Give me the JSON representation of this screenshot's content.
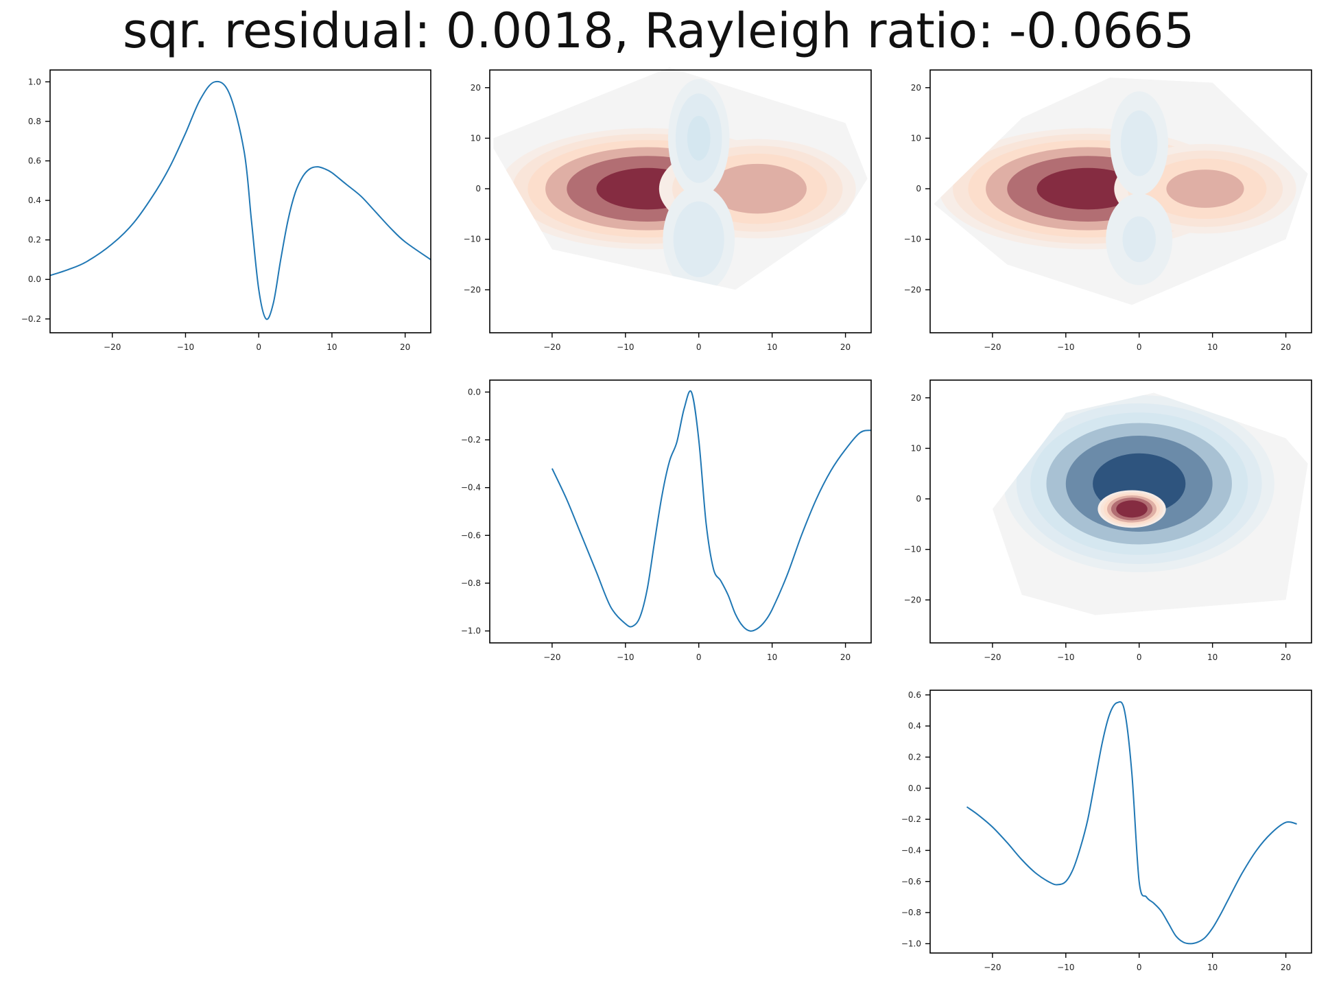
{
  "title": "sqr. residual: 0.0018, Rayleigh ratio: -0.0665",
  "colors": {
    "line": "#1f77b4",
    "colormap": "RdBu_r",
    "negative_strong": "#053061",
    "negative_light": "#d1e5f0",
    "neutral": "#f4f4f4",
    "positive_light": "#fddbc7",
    "positive_strong": "#67001f"
  },
  "chart_data": [
    {
      "id": "row1-col1",
      "type": "line",
      "xlim": [
        -28.5,
        23.5
      ],
      "ylim": [
        -0.27,
        1.06
      ],
      "xticks": [
        -20,
        -10,
        0,
        10,
        20
      ],
      "xtick_labels": [
        "−20",
        "−10",
        "0",
        "10",
        "20"
      ],
      "yticks": [
        -0.2,
        0.0,
        0.2,
        0.4,
        0.6,
        0.8,
        1.0
      ],
      "ytick_labels": [
        "−0.2",
        "0.0",
        "0.2",
        "0.4",
        "0.6",
        "0.8",
        "1.0"
      ],
      "series": [
        {
          "x": [
            -28.5,
            -26,
            -23.5,
            -20,
            -17,
            -14,
            -12,
            -10,
            -8,
            -6,
            -4,
            -2,
            -1,
            0,
            1,
            2,
            3,
            4,
            5,
            6,
            7,
            8,
            9,
            10,
            12,
            14,
            16,
            18,
            20,
            23.5
          ],
          "y": [
            0.02,
            0.05,
            0.09,
            0.18,
            0.29,
            0.45,
            0.58,
            0.74,
            0.91,
            1.0,
            0.94,
            0.65,
            0.3,
            -0.05,
            -0.2,
            -0.12,
            0.1,
            0.3,
            0.44,
            0.52,
            0.56,
            0.57,
            0.56,
            0.54,
            0.48,
            0.42,
            0.34,
            0.26,
            0.19,
            0.1
          ]
        }
      ]
    },
    {
      "id": "row1-col2",
      "type": "heatmap",
      "xlim": [
        -28.5,
        23.5
      ],
      "ylim": [
        -28.5,
        23.5
      ],
      "xticks": [
        -20,
        -10,
        0,
        10,
        20
      ],
      "xtick_labels": [
        "−20",
        "−10",
        "0",
        "10",
        "20"
      ],
      "yticks": [
        -20,
        -10,
        0,
        10,
        20
      ],
      "ytick_labels": [
        "−20",
        "−10",
        "0",
        "10",
        "20"
      ],
      "field": {
        "hull": [
          [
            -28,
            10
          ],
          [
            -4,
            24
          ],
          [
            20,
            13
          ],
          [
            23,
            2
          ],
          [
            20,
            -5
          ],
          [
            5,
            -20
          ],
          [
            -20,
            -12
          ],
          [
            -28,
            8
          ]
        ],
        "lobes": [
          {
            "center": [
              -7,
              0
            ],
            "radius": [
              22,
              13
            ],
            "peak": 1.0
          },
          {
            "center": [
              8,
              0
            ],
            "radius": [
              15,
              11
            ],
            "peak": 0.75
          },
          {
            "center": [
              0,
              10
            ],
            "radius": [
              5,
              14
            ],
            "peak": -0.5
          },
          {
            "center": [
              0,
              -10
            ],
            "radius": [
              6,
              13
            ],
            "peak": -0.45
          }
        ]
      }
    },
    {
      "id": "row1-col3",
      "type": "heatmap",
      "xlim": [
        -28.5,
        23.5
      ],
      "ylim": [
        -28.5,
        23.5
      ],
      "xticks": [
        -20,
        -10,
        0,
        10,
        20
      ],
      "xtick_labels": [
        "−20",
        "−10",
        "0",
        "10",
        "20"
      ],
      "yticks": [
        -20,
        -10,
        0,
        10,
        20
      ],
      "ytick_labels": [
        "−20",
        "−10",
        "0",
        "10",
        "20"
      ],
      "field": {
        "hull": [
          [
            -28,
            -3
          ],
          [
            -16,
            14
          ],
          [
            -4,
            22
          ],
          [
            10,
            21
          ],
          [
            23,
            3
          ],
          [
            20,
            -10
          ],
          [
            -1,
            -23
          ],
          [
            -18,
            -15
          ]
        ],
        "lobes": [
          {
            "center": [
              -7,
              0
            ],
            "radius": [
              22,
              13
            ],
            "peak": 1.0
          },
          {
            "center": [
              9,
              0
            ],
            "radius": [
              14,
              10
            ],
            "peak": 0.7
          },
          {
            "center": [
              0,
              9
            ],
            "radius": [
              5,
              13
            ],
            "peak": -0.4
          },
          {
            "center": [
              0,
              -10
            ],
            "radius": [
              6,
              12
            ],
            "peak": -0.35
          }
        ]
      }
    },
    {
      "id": "row2-col2",
      "type": "line",
      "xlim": [
        -28.5,
        23.5
      ],
      "ylim": [
        -1.05,
        0.05
      ],
      "xticks": [
        -20,
        -10,
        0,
        10,
        20
      ],
      "xtick_labels": [
        "−20",
        "−10",
        "0",
        "10",
        "20"
      ],
      "yticks": [
        -1.0,
        -0.8,
        -0.6,
        -0.4,
        -0.2,
        0.0
      ],
      "ytick_labels": [
        "−1.0",
        "−0.8",
        "−0.6",
        "−0.4",
        "−0.2",
        "0.0"
      ],
      "series": [
        {
          "x": [
            -20,
            -18,
            -16,
            -14,
            -12,
            -10,
            -9,
            -8,
            -7,
            -6,
            -5,
            -4,
            -3,
            -2,
            -1,
            0,
            1,
            2,
            3,
            4,
            5,
            6,
            7,
            8,
            9,
            10,
            12,
            14,
            16,
            18,
            20,
            22,
            23.5
          ],
          "y": [
            -0.32,
            -0.45,
            -0.6,
            -0.75,
            -0.9,
            -0.97,
            -0.98,
            -0.94,
            -0.82,
            -0.62,
            -0.43,
            -0.29,
            -0.21,
            -0.07,
            0.0,
            -0.2,
            -0.55,
            -0.74,
            -0.79,
            -0.85,
            -0.93,
            -0.98,
            -1.0,
            -0.99,
            -0.96,
            -0.91,
            -0.77,
            -0.6,
            -0.45,
            -0.33,
            -0.24,
            -0.17,
            -0.16
          ]
        }
      ]
    },
    {
      "id": "row2-col3",
      "type": "heatmap",
      "xlim": [
        -28.5,
        23.5
      ],
      "ylim": [
        -28.5,
        23.5
      ],
      "xticks": [
        -20,
        -10,
        0,
        10,
        20
      ],
      "xtick_labels": [
        "−20",
        "−10",
        "0",
        "10",
        "20"
      ],
      "yticks": [
        -20,
        -10,
        0,
        10,
        20
      ],
      "ytick_labels": [
        "−20",
        "−10",
        "0",
        "10",
        "20"
      ],
      "field": {
        "hull": [
          [
            -20,
            -2
          ],
          [
            -10,
            17
          ],
          [
            2,
            21
          ],
          [
            20,
            12
          ],
          [
            23,
            7
          ],
          [
            20,
            -20
          ],
          [
            -6,
            -23
          ],
          [
            -16,
            -19
          ]
        ],
        "lobes": [
          {
            "center": [
              0,
              3
            ],
            "radius": [
              20,
              19
            ],
            "peak": -1.0
          },
          {
            "center": [
              -1,
              -2
            ],
            "radius": [
              5,
              4
            ],
            "peak": 1.1
          }
        ]
      }
    },
    {
      "id": "row3-col3",
      "type": "line",
      "xlim": [
        -28.5,
        23.5
      ],
      "ylim": [
        -1.06,
        0.63
      ],
      "xticks": [
        -20,
        -10,
        0,
        10,
        20
      ],
      "xtick_labels": [
        "−20",
        "−10",
        "0",
        "10",
        "20"
      ],
      "yticks": [
        -1.0,
        -0.8,
        -0.6,
        -0.4,
        -0.2,
        0.0,
        0.2,
        0.4,
        0.6
      ],
      "ytick_labels": [
        "−1.0",
        "−0.8",
        "−0.6",
        "−0.4",
        "−0.2",
        "0.0",
        "0.2",
        "0.4",
        "0.6"
      ],
      "series": [
        {
          "x": [
            -23.5,
            -22,
            -20,
            -18,
            -16,
            -14,
            -12,
            -11,
            -10,
            -9,
            -8,
            -7,
            -6,
            -5,
            -4,
            -3,
            -2,
            -1,
            0,
            1,
            2,
            3,
            4,
            5,
            6,
            7,
            8,
            9,
            10,
            11,
            12,
            14,
            16,
            18,
            20,
            21.5
          ],
          "y": [
            -0.12,
            -0.17,
            -0.25,
            -0.35,
            -0.46,
            -0.55,
            -0.61,
            -0.62,
            -0.6,
            -0.52,
            -0.38,
            -0.2,
            0.05,
            0.3,
            0.48,
            0.55,
            0.5,
            0.1,
            -0.6,
            -0.7,
            -0.74,
            -0.79,
            -0.87,
            -0.95,
            -0.99,
            -1.0,
            -0.99,
            -0.96,
            -0.9,
            -0.82,
            -0.73,
            -0.55,
            -0.4,
            -0.29,
            -0.22,
            -0.23
          ]
        }
      ]
    }
  ]
}
